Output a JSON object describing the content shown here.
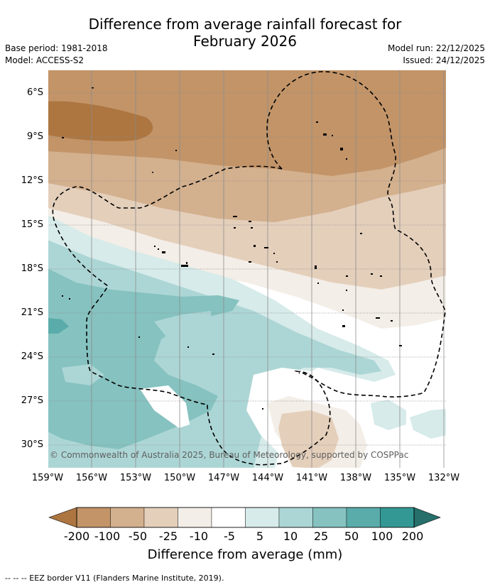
{
  "title_line1": "Difference from average rainfall forecast for",
  "title_line2": "February 2026",
  "meta": {
    "base_period": "Base period: 1981-2018",
    "model": "Model: ACCESS-S2",
    "model_run": "Model run: 22/12/2025",
    "issued": "Issued: 24/12/2025"
  },
  "map": {
    "lat_labels": [
      "6°S",
      "9°S",
      "12°S",
      "15°S",
      "18°S",
      "21°S",
      "24°S",
      "27°S",
      "30°S"
    ],
    "lon_labels": [
      "159°W",
      "156°W",
      "153°W",
      "150°W",
      "147°W",
      "144°W",
      "141°W",
      "138°W",
      "135°W",
      "132°W"
    ],
    "copyright": "© Commonwealth of Australia 2025, Bureau of Meteorology, supported by COSPPac"
  },
  "colorbar": {
    "ticks": [
      "-200",
      "-100",
      "-50",
      "-25",
      "-10",
      "-5",
      "5",
      "10",
      "25",
      "50",
      "100",
      "200"
    ],
    "colors": [
      "#ad7540",
      "#c29468",
      "#d3b08e",
      "#e4cfbb",
      "#f3eee7",
      "#ffffff",
      "#d6ebea",
      "#acd6d5",
      "#85c2c0",
      "#5aacaa",
      "#339894",
      "#266f6b"
    ],
    "label": "Difference from average (mm)"
  },
  "legend_note": "--  --  -- EEZ border V11 (Flanders Marine Institute, 2019)."
}
